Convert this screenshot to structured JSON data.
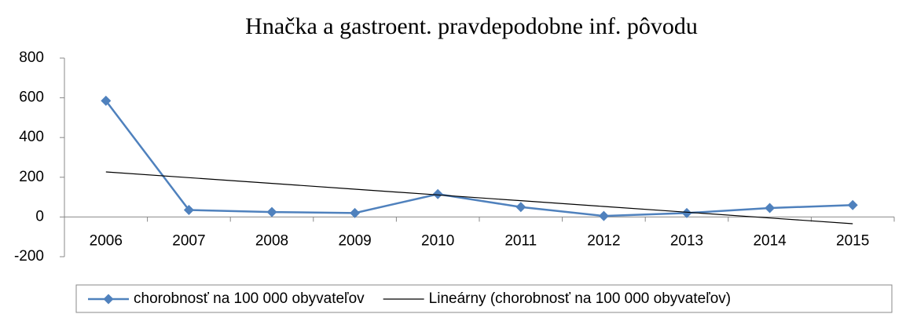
{
  "chart_data": {
    "type": "line",
    "title": "Hnačka a gastroent. pravdepodobne inf. pôvodu",
    "categories": [
      "2006",
      "2007",
      "2008",
      "2009",
      "2010",
      "2011",
      "2012",
      "2013",
      "2014",
      "2015"
    ],
    "series": [
      {
        "name": "chorobnosť na 100 000 obyvateľov",
        "color": "#4f81bd",
        "marker": true,
        "values": [
          585,
          35,
          25,
          20,
          115,
          50,
          5,
          20,
          45,
          60
        ]
      },
      {
        "name": "Lineárny (chorobnosť na 100 000 obyvateľov)",
        "color": "#000000",
        "marker": false,
        "values": [
          227,
          198,
          169,
          140,
          111,
          82,
          53,
          24,
          -5,
          -34
        ]
      }
    ],
    "ylim": [
      -200,
      800
    ],
    "yticks": [
      -200,
      0,
      200,
      400,
      600,
      800
    ],
    "grid": false,
    "legend": "bottom"
  }
}
